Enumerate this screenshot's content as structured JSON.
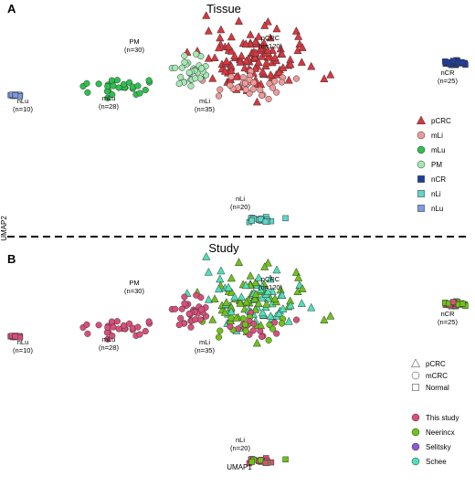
{
  "panels": [
    {
      "letter": "A",
      "title": "Tissue",
      "labels": [
        {
          "key": "pm",
          "l1": "PM",
          "l2": "(n=30)"
        },
        {
          "key": "pcrc",
          "l1": "pCRC",
          "l2": "(n=120)"
        },
        {
          "key": "ncr",
          "l1": "nCR",
          "l2": "(n=25)"
        },
        {
          "key": "nlu",
          "l1": "nLu",
          "l2": "(n=10)"
        },
        {
          "key": "mlu",
          "l1": "mLu",
          "l2": "(n=28)"
        },
        {
          "key": "mli",
          "l1": "mLi",
          "l2": "(n=35)"
        },
        {
          "key": "nli",
          "l1": "nLi",
          "l2": "(n=20)"
        }
      ],
      "legend": [
        {
          "label": "pCRC",
          "shape": "triangle",
          "color": "#d9363e"
        },
        {
          "label": "mLi",
          "shape": "circle",
          "color": "#ef9a9a"
        },
        {
          "label": "mLu",
          "shape": "circle",
          "color": "#2fbf4f"
        },
        {
          "label": "PM",
          "shape": "circle",
          "color": "#a6e8b4"
        },
        {
          "label": "nCR",
          "shape": "square",
          "color": "#1f3f9e"
        },
        {
          "label": "nLi",
          "shape": "square",
          "color": "#5ed6c8"
        },
        {
          "label": "nLu",
          "shape": "square",
          "color": "#7b9be0"
        }
      ]
    },
    {
      "letter": "B",
      "title": "Study",
      "labels": [
        {
          "key": "pm",
          "l1": "PM",
          "l2": "(n=30)"
        },
        {
          "key": "pcrc",
          "l1": "pCRC",
          "l2": "(n=120)"
        },
        {
          "key": "ncr",
          "l1": "nCR",
          "l2": "(n=25)"
        },
        {
          "key": "nlu",
          "l1": "nLu",
          "l2": "(n=10)"
        },
        {
          "key": "mlu",
          "l1": "mLu",
          "l2": "(n=28)"
        },
        {
          "key": "mli",
          "l1": "mLi",
          "l2": "(n=35)"
        },
        {
          "key": "nli",
          "l1": "nLi",
          "l2": "(n=20)"
        }
      ],
      "shape_legend": [
        {
          "label": "pCRC",
          "shape": "triangle"
        },
        {
          "label": "mCRC",
          "shape": "circle"
        },
        {
          "label": "Normal",
          "shape": "square"
        }
      ],
      "legend": [
        {
          "label": "This study",
          "color": "#d94f7a"
        },
        {
          "label": "Neerincx",
          "color": "#6fc21a"
        },
        {
          "label": "Selitsky",
          "color": "#8a5ad6"
        },
        {
          "label": "Schee",
          "color": "#4fe0b8"
        }
      ]
    }
  ],
  "axis": {
    "x": "UMAP1",
    "y": "UMAP2"
  },
  "chart_data": {
    "type": "scatter",
    "xlabel": "UMAP1",
    "ylabel": "UMAP2",
    "grid": false,
    "panels": [
      {
        "title": "Tissue",
        "color_by": "tissue",
        "groups": [
          {
            "name": "pCRC",
            "n": 120,
            "shape": "triangle",
            "color": "#d9363e",
            "center": [
              6.2,
              4.7
            ],
            "spread": [
              1.8,
              0.9
            ]
          },
          {
            "name": "mLi",
            "n": 35,
            "shape": "circle",
            "color": "#ef9a9a",
            "center": [
              6.0,
              3.9
            ],
            "spread": [
              1.4,
              0.35
            ]
          },
          {
            "name": "mLu",
            "n": 28,
            "shape": "circle",
            "color": "#2fbf4f",
            "center": [
              1.6,
              3.8
            ],
            "spread": [
              1.4,
              0.3
            ]
          },
          {
            "name": "PM",
            "n": 30,
            "shape": "circle",
            "color": "#a6e8b4",
            "center": [
              4.0,
              4.4
            ],
            "spread": [
              0.8,
              0.45
            ]
          },
          {
            "name": "nCR",
            "n": 25,
            "shape": "square",
            "color": "#1f3f9e",
            "center": [
              12.8,
              4.6
            ],
            "spread": [
              0.55,
              0.1
            ]
          },
          {
            "name": "nLi",
            "n": 20,
            "shape": "square",
            "color": "#5ed6c8",
            "center": [
              6.4,
              -0.3
            ],
            "spread": [
              0.5,
              0.1
            ]
          },
          {
            "name": "nLu",
            "n": 10,
            "shape": "square",
            "color": "#7b9be0",
            "center": [
              -1.7,
              3.6
            ],
            "spread": [
              0.2,
              0.06
            ]
          }
        ]
      },
      {
        "title": "Study",
        "color_by": "study",
        "groups": [
          {
            "name": "pCRC",
            "n": 120,
            "shape": "triangle",
            "study": [
              "Schee",
              "Neerincx"
            ],
            "center": [
              6.2,
              4.7
            ],
            "spread": [
              1.8,
              0.9
            ]
          },
          {
            "name": "mLi",
            "n": 35,
            "shape": "circle",
            "study": [
              "This study",
              "Neerincx"
            ],
            "center": [
              6.0,
              3.9
            ],
            "spread": [
              1.4,
              0.35
            ]
          },
          {
            "name": "mLu",
            "n": 28,
            "shape": "circle",
            "study": [
              "This study"
            ],
            "center": [
              1.6,
              3.8
            ],
            "spread": [
              1.4,
              0.3
            ]
          },
          {
            "name": "PM",
            "n": 30,
            "shape": "circle",
            "study": [
              "This study"
            ],
            "center": [
              4.0,
              4.4
            ],
            "spread": [
              0.8,
              0.45
            ]
          },
          {
            "name": "nCR",
            "n": 25,
            "shape": "square",
            "study": [
              "Neerincx",
              "This study"
            ],
            "center": [
              12.8,
              4.6
            ],
            "spread": [
              0.55,
              0.1
            ]
          },
          {
            "name": "nLi",
            "n": 20,
            "shape": "square",
            "study": [
              "This study",
              "Neerincx"
            ],
            "center": [
              6.4,
              -0.3
            ],
            "spread": [
              0.5,
              0.1
            ]
          },
          {
            "name": "nLu",
            "n": 10,
            "shape": "square",
            "study": [
              "This study"
            ],
            "center": [
              -1.7,
              3.6
            ],
            "spread": [
              0.2,
              0.06
            ]
          }
        ]
      }
    ]
  }
}
